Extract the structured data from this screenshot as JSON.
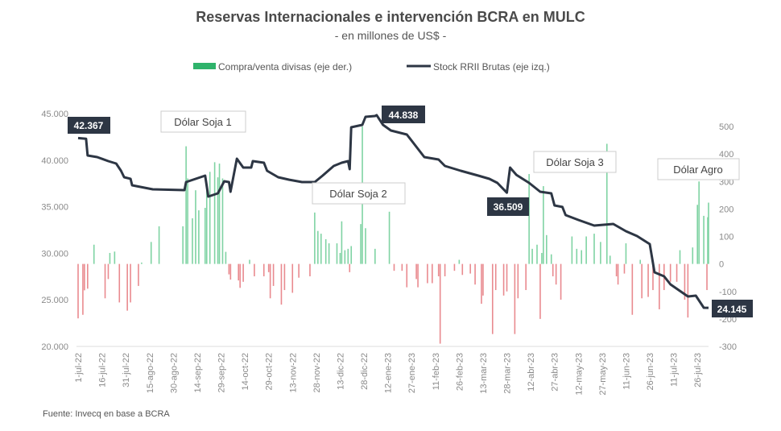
{
  "chart_data": {
    "type": "bar+line",
    "title": "Reservas Internacionales e intervención BCRA en MULC",
    "subtitle": "- en millones de US$ -",
    "source": "Fuente: Invecq en base a BCRA",
    "x_unit": "days since 1-jul-22",
    "x_range": [
      0,
      397
    ],
    "x_tick_step_days": 15,
    "x_tick_labels": [
      "1-jul-22",
      "16-jul-22",
      "31-jul-22",
      "15-ago-22",
      "30-ago-22",
      "14-sep-22",
      "29-sep-22",
      "14-oct-22",
      "29-oct-22",
      "13-nov-22",
      "28-nov-22",
      "13-dic-22",
      "28-dic-22",
      "12-ene-23",
      "27-ene-23",
      "11-feb-23",
      "26-feb-23",
      "13-mar-23",
      "28-mar-23",
      "12-abr-23",
      "27-abr-23",
      "12-may-23",
      "27-may-23",
      "11-jun-23",
      "26-jun-23",
      "11-jul-23",
      "26-jul-23"
    ],
    "y_left": {
      "range": [
        20000,
        45000
      ],
      "ticks": [
        "20.000",
        "25.000",
        "30.000",
        "35.000",
        "40.000",
        "45.000"
      ],
      "tick_values": [
        20000,
        25000,
        30000,
        35000,
        40000,
        45000
      ]
    },
    "y_right": {
      "range": [
        -300,
        500
      ],
      "ticks": [
        "-300",
        "-200",
        "-100",
        "0",
        "100",
        "200",
        "300",
        "400",
        "500"
      ],
      "tick_values": [
        -300,
        -200,
        -100,
        0,
        100,
        200,
        300,
        400,
        500
      ]
    },
    "legend": [
      {
        "name": "Compra/venta divisas (eje der.)",
        "color": "#2fb36b",
        "kind": "bar"
      },
      {
        "name": "Stock RRII Brutas (eje izq.)",
        "color": "#2d3644",
        "kind": "line"
      }
    ],
    "colors": {
      "buy": "#7fd3a3",
      "sell": "#e98a8f",
      "line": "#2d3644",
      "label_bg": "#2d3644"
    },
    "line": [
      [
        0,
        42367
      ],
      [
        5,
        42300
      ],
      [
        6,
        40500
      ],
      [
        12,
        40330
      ],
      [
        19,
        39900
      ],
      [
        24,
        39640
      ],
      [
        27,
        38860
      ],
      [
        29,
        38170
      ],
      [
        33,
        38000
      ],
      [
        34,
        37300
      ],
      [
        47,
        36870
      ],
      [
        67,
        36780
      ],
      [
        68,
        37650
      ],
      [
        80,
        38340
      ],
      [
        82,
        36090
      ],
      [
        88,
        36440
      ],
      [
        92,
        37730
      ],
      [
        95,
        37650
      ],
      [
        96,
        36610
      ],
      [
        100,
        40160
      ],
      [
        104,
        39200
      ],
      [
        109,
        39200
      ],
      [
        110,
        39900
      ],
      [
        117,
        39720
      ],
      [
        119,
        38860
      ],
      [
        126,
        38170
      ],
      [
        133,
        37900
      ],
      [
        141,
        37650
      ],
      [
        149,
        37650
      ],
      [
        154,
        38340
      ],
      [
        161,
        39380
      ],
      [
        166,
        39720
      ],
      [
        170,
        39900
      ],
      [
        171,
        39030
      ],
      [
        172,
        43530
      ],
      [
        179,
        43790
      ],
      [
        181,
        44650
      ],
      [
        187,
        44740
      ],
      [
        188,
        44838
      ],
      [
        192,
        43790
      ],
      [
        197,
        43180
      ],
      [
        207,
        42750
      ],
      [
        218,
        40330
      ],
      [
        227,
        40070
      ],
      [
        231,
        39380
      ],
      [
        241,
        38860
      ],
      [
        252,
        38340
      ],
      [
        259,
        37990
      ],
      [
        264,
        37560
      ],
      [
        270,
        36509
      ],
      [
        272,
        39200
      ],
      [
        276,
        38420
      ],
      [
        284,
        37560
      ],
      [
        291,
        36610
      ],
      [
        298,
        36440
      ],
      [
        300,
        35140
      ],
      [
        305,
        34970
      ],
      [
        307,
        34100
      ],
      [
        315,
        33580
      ],
      [
        325,
        32980
      ],
      [
        337,
        33150
      ],
      [
        345,
        32370
      ],
      [
        352,
        31850
      ],
      [
        360,
        30990
      ],
      [
        363,
        27960
      ],
      [
        369,
        27530
      ],
      [
        373,
        26660
      ],
      [
        384,
        25360
      ],
      [
        389,
        25450
      ],
      [
        394,
        24150
      ],
      [
        397,
        24145
      ]
    ],
    "bars": [
      [
        0,
        -198
      ],
      [
        3,
        -185
      ],
      [
        4,
        -96
      ],
      [
        6,
        -90
      ],
      [
        10,
        70
      ],
      [
        17,
        -125
      ],
      [
        19,
        -55
      ],
      [
        20,
        40
      ],
      [
        23,
        45
      ],
      [
        26,
        -140
      ],
      [
        31,
        -170
      ],
      [
        33,
        -140
      ],
      [
        38,
        -80
      ],
      [
        40,
        5
      ],
      [
        46,
        80
      ],
      [
        51,
        137
      ],
      [
        66,
        137
      ],
      [
        68,
        428
      ],
      [
        69,
        311
      ],
      [
        72,
        166
      ],
      [
        74,
        268
      ],
      [
        76,
        195
      ],
      [
        80,
        204
      ],
      [
        81,
        268
      ],
      [
        83,
        335
      ],
      [
        86,
        370
      ],
      [
        88,
        315
      ],
      [
        89,
        365
      ],
      [
        91,
        311
      ],
      [
        93,
        44
      ],
      [
        95,
        -38
      ],
      [
        96,
        -57
      ],
      [
        101,
        -60
      ],
      [
        102,
        -87
      ],
      [
        104,
        -65
      ],
      [
        108,
        15
      ],
      [
        111,
        -45
      ],
      [
        117,
        -45
      ],
      [
        120,
        -30
      ],
      [
        121,
        -125
      ],
      [
        123,
        -80
      ],
      [
        128,
        -148
      ],
      [
        130,
        -95
      ],
      [
        135,
        -105
      ],
      [
        139,
        -50
      ],
      [
        146,
        -45
      ],
      [
        149,
        187
      ],
      [
        151,
        120
      ],
      [
        153,
        110
      ],
      [
        156,
        90
      ],
      [
        158,
        75
      ],
      [
        163,
        75
      ],
      [
        165,
        40
      ],
      [
        166,
        155
      ],
      [
        168,
        50
      ],
      [
        170,
        55
      ],
      [
        171,
        -30
      ],
      [
        172,
        65
      ],
      [
        178,
        145
      ],
      [
        179,
        500
      ],
      [
        181,
        130
      ],
      [
        187,
        55
      ],
      [
        196,
        190
      ],
      [
        199,
        -25
      ],
      [
        204,
        -25
      ],
      [
        207,
        -85
      ],
      [
        213,
        -55
      ],
      [
        214,
        -85
      ],
      [
        220,
        -70
      ],
      [
        223,
        -70
      ],
      [
        227,
        -45
      ],
      [
        228,
        -290
      ],
      [
        231,
        -45
      ],
      [
        237,
        -25
      ],
      [
        240,
        15
      ],
      [
        242,
        -40
      ],
      [
        247,
        -35
      ],
      [
        250,
        -75
      ],
      [
        254,
        -145
      ],
      [
        255,
        -115
      ],
      [
        261,
        -255
      ],
      [
        263,
        -95
      ],
      [
        268,
        -115
      ],
      [
        270,
        -100
      ],
      [
        275,
        -255
      ],
      [
        277,
        -125
      ],
      [
        282,
        -95
      ],
      [
        284,
        327
      ],
      [
        286,
        55
      ],
      [
        289,
        70
      ],
      [
        291,
        -200
      ],
      [
        292,
        40
      ],
      [
        293,
        283
      ],
      [
        295,
        105
      ],
      [
        298,
        35
      ],
      [
        299,
        -45
      ],
      [
        301,
        -75
      ],
      [
        304,
        -130
      ],
      [
        311,
        100
      ],
      [
        314,
        55
      ],
      [
        317,
        50
      ],
      [
        320,
        100
      ],
      [
        325,
        110
      ],
      [
        329,
        80
      ],
      [
        333,
        437
      ],
      [
        335,
        30
      ],
      [
        339,
        -45
      ],
      [
        340,
        -75
      ],
      [
        344,
        -35
      ],
      [
        345,
        75
      ],
      [
        349,
        -185
      ],
      [
        354,
        15
      ],
      [
        355,
        -125
      ],
      [
        359,
        -120
      ],
      [
        362,
        -95
      ],
      [
        366,
        -165
      ],
      [
        369,
        -95
      ],
      [
        373,
        -65
      ],
      [
        377,
        -65
      ],
      [
        379,
        50
      ],
      [
        382,
        -130
      ],
      [
        384,
        -195
      ],
      [
        387,
        60
      ],
      [
        390,
        215
      ],
      [
        391,
        300
      ],
      [
        394,
        175
      ],
      [
        396,
        -95
      ],
      [
        396.5,
        170
      ],
      [
        397,
        223
      ]
    ],
    "annotations": [
      {
        "text": "Dólar Soja 1"
      },
      {
        "text": "Dólar Soja 2"
      },
      {
        "text": "Dólar Soja 3"
      },
      {
        "text": "Dólar Agro"
      }
    ],
    "value_labels": [
      {
        "text": "42.367",
        "day": 0,
        "value": 42367
      },
      {
        "text": "44.838",
        "day": 188,
        "value": 44838
      },
      {
        "text": "36.509",
        "day": 270,
        "value": 36509
      },
      {
        "text": "24.145",
        "day": 397,
        "value": 24145
      }
    ]
  }
}
